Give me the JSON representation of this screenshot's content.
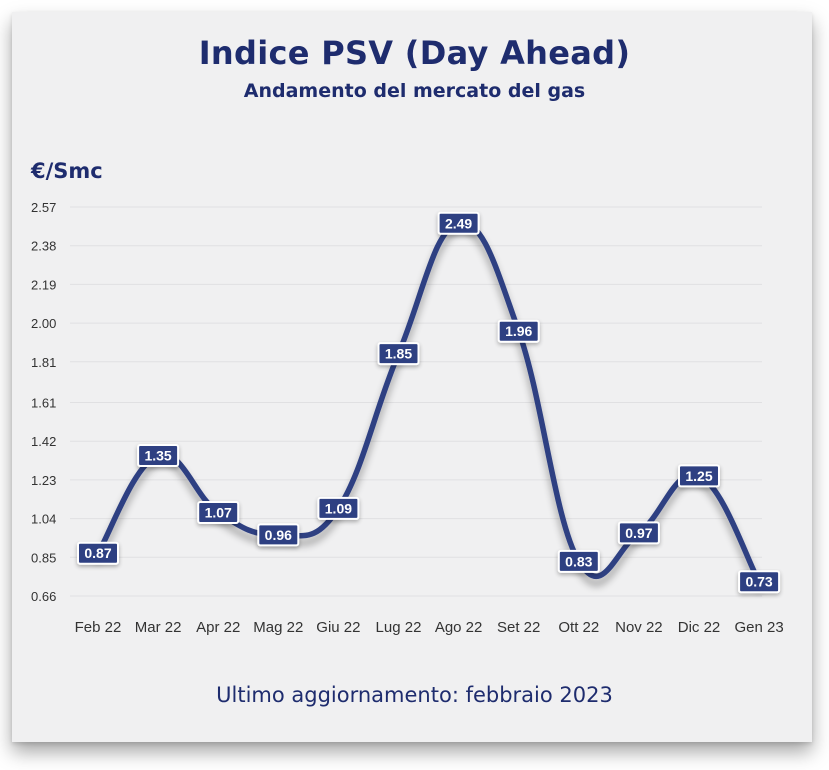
{
  "footer": "Ultimo aggiornamento: febbraio 2023",
  "colors": {
    "line": "#2d3f82",
    "text": "#1e2c6e",
    "grid": "#e0e0e2",
    "card": "#f0f0f1"
  },
  "chart_data": {
    "type": "line",
    "title": "Indice PSV (Day Ahead)",
    "subtitle": "Andamento del mercato del gas",
    "ylabel": "€/Smc",
    "xlabel": "",
    "ylim": [
      0.66,
      2.57
    ],
    "yticks": [
      "2.57",
      "2.38",
      "2.19",
      "2.00",
      "1.81",
      "1.61",
      "1.42",
      "1.23",
      "1.04",
      "0.85",
      "0.66"
    ],
    "categories": [
      "Feb 22",
      "Mar 22",
      "Apr 22",
      "Mag 22",
      "Giu 22",
      "Lug 22",
      "Ago 22",
      "Set 22",
      "Ott 22",
      "Nov 22",
      "Dic 22",
      "Gen 23"
    ],
    "values": [
      0.87,
      1.35,
      1.07,
      0.96,
      1.09,
      1.85,
      2.49,
      1.96,
      0.83,
      0.97,
      1.25,
      0.73
    ],
    "value_labels": [
      "0.87",
      "1.35",
      "1.07",
      "0.96",
      "1.09",
      "1.85",
      "2.49",
      "1.96",
      "0.83",
      "0.97",
      "1.25",
      "0.73"
    ],
    "grid": true,
    "legend": "none"
  }
}
